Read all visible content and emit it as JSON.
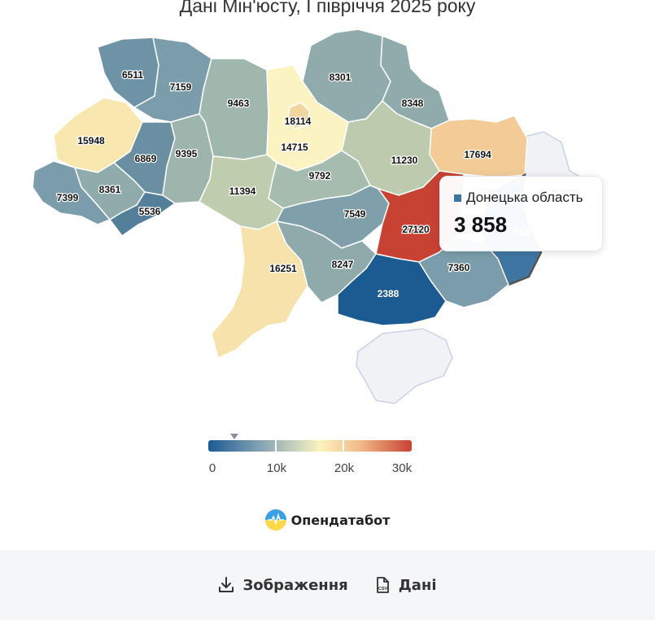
{
  "title": "Дані Мін'юсту, І півріччя 2025 року",
  "map": {
    "regions": [
      {
        "id": "volynska",
        "value": "6511",
        "color": "#6f93a6"
      },
      {
        "id": "rivnenska",
        "value": "7159",
        "color": "#7b9dab"
      },
      {
        "id": "zhytomyrska",
        "value": "9463",
        "color": "#9fb7ad"
      },
      {
        "id": "kyivska",
        "value": "18114",
        "color": "#fbf3c2"
      },
      {
        "id": "kyiv",
        "value": "14715",
        "color": "#f3d69f"
      },
      {
        "id": "chernihivska",
        "value": "8301",
        "color": "#8fabab"
      },
      {
        "id": "sumska",
        "value": "8348",
        "color": "#8fabab"
      },
      {
        "id": "kharkivska",
        "value": "17694",
        "color": "#f2cb97"
      },
      {
        "id": "luhanska",
        "value": "",
        "color": "#f1f2f6"
      },
      {
        "id": "lvivska",
        "value": "15948",
        "color": "#f8e8b0"
      },
      {
        "id": "ternopilska",
        "value": "6869",
        "color": "#6a8fa3"
      },
      {
        "id": "khmelnytska",
        "value": "9395",
        "color": "#9db5ad"
      },
      {
        "id": "cherkaska",
        "value": "9792",
        "color": "#a6bcae"
      },
      {
        "id": "poltavska",
        "value": "11230",
        "color": "#bccaae"
      },
      {
        "id": "zakarpatska",
        "value": "7399",
        "color": "#7b9dab"
      },
      {
        "id": "ivano-frankivska",
        "value": "8361",
        "color": "#8fabab"
      },
      {
        "id": "chernivetska",
        "value": "5536",
        "color": "#547f9b"
      },
      {
        "id": "vinnytska",
        "value": "11394",
        "color": "#bfcdaf"
      },
      {
        "id": "kirovohradska",
        "value": "7549",
        "color": "#7fa0ab"
      },
      {
        "id": "dnipropetrovska",
        "value": "27120",
        "color": "#c84234"
      },
      {
        "id": "donetska",
        "value": "3858",
        "color": "#3e76a3"
      },
      {
        "id": "odeska",
        "value": "16251",
        "color": "#f6e2aa"
      },
      {
        "id": "mykolaivska",
        "value": "8247",
        "color": "#8eaaab"
      },
      {
        "id": "khersonska",
        "value": "2388",
        "color": "#1c5a92"
      },
      {
        "id": "zaporizka",
        "value": "7360",
        "color": "#7b9dab"
      },
      {
        "id": "krym",
        "value": "",
        "color": "#f1f2f6"
      }
    ]
  },
  "tooltip": {
    "region": "Донецька область",
    "value": "3 858",
    "swatch_color": "#3e76a3",
    "partial_label": "858"
  },
  "legend": {
    "labels": [
      "0",
      "10k",
      "20k",
      "30k"
    ],
    "min": 0,
    "max": 30000,
    "marker_value": 3858
  },
  "brand": {
    "name": "Опендатабот",
    "logo_icon": "opendatabot-logo-icon"
  },
  "footer": {
    "image_button": {
      "label": "Зображення",
      "icon": "download-icon"
    },
    "data_button": {
      "label": "Дані",
      "icon": "csv-file-icon"
    }
  }
}
